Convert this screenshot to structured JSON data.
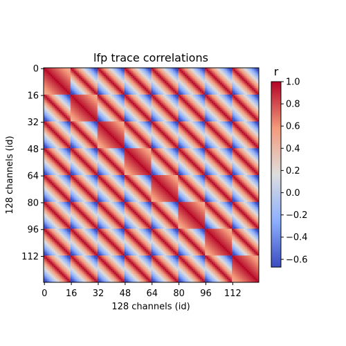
{
  "chart_data": {
    "type": "heatmap",
    "title": "lfp trace correlations",
    "xlabel": "128 channels (id)",
    "ylabel": "128 channels (id)",
    "n": 128,
    "x_ticks": [
      0,
      16,
      32,
      48,
      64,
      80,
      96,
      112
    ],
    "y_ticks": [
      0,
      16,
      32,
      48,
      64,
      80,
      96,
      112
    ],
    "colormap": "coolwarm",
    "colorbar": {
      "label": "r",
      "vmin": -0.67,
      "vmax": 1.0,
      "ticks": [
        1.0,
        0.8,
        0.6,
        0.4,
        0.2,
        0.0,
        -0.2,
        -0.4,
        -0.6
      ],
      "tick_labels": [
        "1.0",
        "0.8",
        "0.6",
        "0.4",
        "0.2",
        "0.0",
        "−0.2",
        "−0.4",
        "−0.6"
      ]
    },
    "structure": {
      "shank_block_size": 16,
      "within_block_r_range": [
        0.5,
        1.0
      ],
      "between_block_r_min": -0.67,
      "diagonal_r": 1.0
    }
  }
}
